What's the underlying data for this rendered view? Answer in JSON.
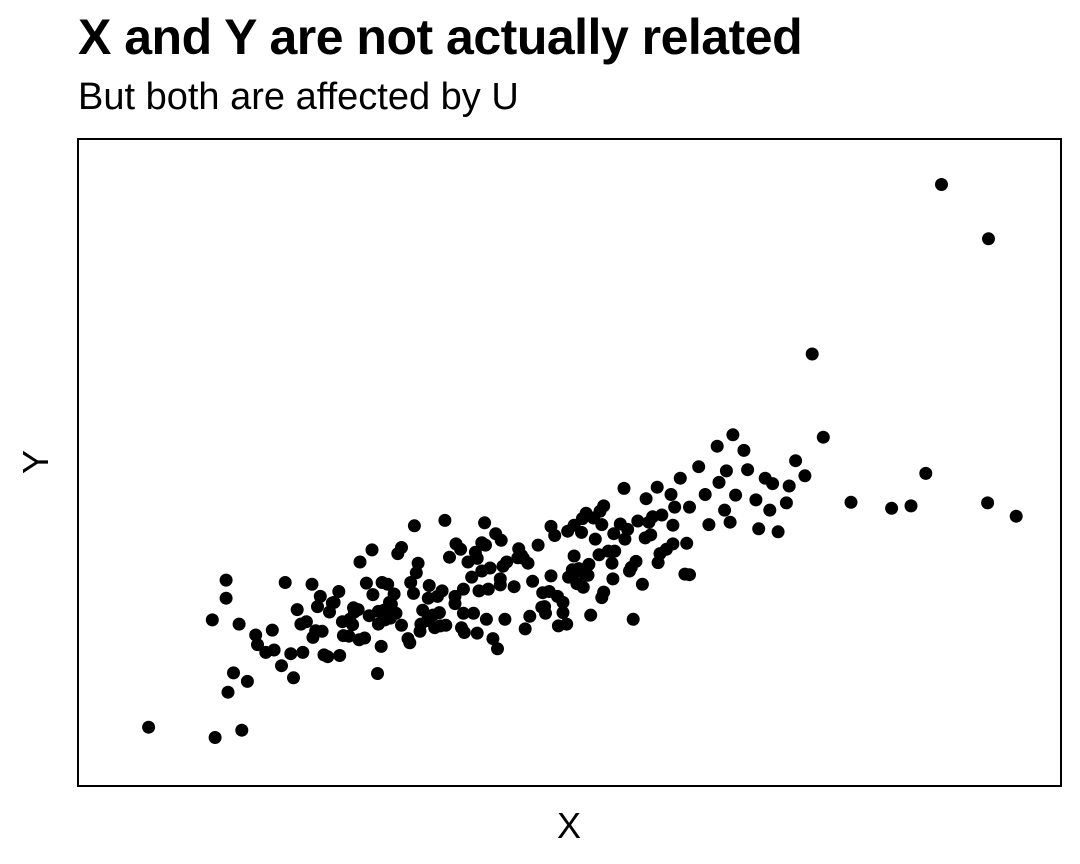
{
  "chart_data": {
    "type": "scatter",
    "title": "X and Y are not actually related",
    "subtitle": "But both are affected by U",
    "xlabel": "X",
    "ylabel": "Y",
    "xlim": [
      0,
      1000
    ],
    "ylim": [
      0,
      1000
    ],
    "grid": false,
    "axis_ticks": false,
    "point_color": "#000000",
    "points": [
      [
        44,
        61
      ],
      [
        116,
        44
      ],
      [
        145,
        56
      ],
      [
        130,
        119
      ],
      [
        128,
        305
      ],
      [
        192,
        301
      ],
      [
        201,
        143
      ],
      [
        211,
        185
      ],
      [
        222,
        210
      ],
      [
        227,
        261
      ],
      [
        230,
        278
      ],
      [
        234,
        181
      ],
      [
        238,
        178
      ],
      [
        243,
        267
      ],
      [
        251,
        180
      ],
      [
        254,
        236
      ],
      [
        255,
        213
      ],
      [
        261,
        212
      ],
      [
        265,
        231
      ],
      [
        267,
        252
      ],
      [
        271,
        256
      ],
      [
        272,
        206
      ],
      [
        278,
        209
      ],
      [
        273,
        335
      ],
      [
        280,
        300
      ],
      [
        286,
        355
      ],
      [
        292,
        150
      ],
      [
        293,
        253
      ],
      [
        296,
        195
      ],
      [
        299,
        255
      ],
      [
        306,
        242
      ],
      [
        307,
        265
      ],
      [
        314,
        349
      ],
      [
        318,
        359
      ],
      [
        303,
        298
      ],
      [
        305,
        268
      ],
      [
        325,
        208
      ],
      [
        328,
        301
      ],
      [
        332,
        395
      ],
      [
        336,
        333
      ],
      [
        331,
        283
      ],
      [
        341,
        255
      ],
      [
        338,
        220
      ],
      [
        347,
        275
      ],
      [
        354,
        226
      ],
      [
        357,
        278
      ],
      [
        360,
        229
      ],
      [
        370,
        343
      ],
      [
        376,
        266
      ],
      [
        382,
        356
      ],
      [
        385,
        250
      ],
      [
        386,
        218
      ],
      [
        394,
        310
      ],
      [
        400,
        217
      ],
      [
        400,
        341
      ],
      [
        408,
        400
      ],
      [
        409,
        363
      ],
      [
        410,
        240
      ],
      [
        414,
        325
      ],
      [
        417,
        208
      ],
      [
        422,
        191
      ],
      [
        425,
        307
      ],
      [
        426,
        371
      ],
      [
        432,
        335
      ],
      [
        444,
        342
      ],
      [
        445,
        357
      ],
      [
        452,
        224
      ],
      [
        455,
        333
      ],
      [
        466,
        363
      ],
      [
        471,
        284
      ],
      [
        473,
        261
      ],
      [
        484,
        379
      ],
      [
        487,
        278
      ],
      [
        488,
        229
      ],
      [
        493,
        251
      ],
      [
        493,
        268
      ],
      [
        498,
        386
      ],
      [
        499,
        310
      ],
      [
        503,
        322
      ],
      [
        505,
        345
      ],
      [
        506,
        318
      ],
      [
        510,
        324
      ],
      [
        514,
        407
      ],
      [
        513,
        384
      ],
      [
        517,
        314
      ],
      [
        521,
        331
      ],
      [
        523,
        247
      ],
      [
        526,
        408
      ],
      [
        533,
        419
      ],
      [
        535,
        397
      ],
      [
        537,
        285
      ],
      [
        537,
        428
      ],
      [
        542,
        353
      ],
      [
        547,
        307
      ],
      [
        555,
        398
      ],
      [
        559,
        457
      ],
      [
        567,
        326
      ],
      [
        569,
        240
      ],
      [
        582,
        375
      ],
      [
        586,
        401
      ],
      [
        590,
        410
      ],
      [
        598,
        349
      ],
      [
        612,
        396
      ],
      [
        625,
        315
      ],
      [
        627,
        366
      ],
      [
        630,
        426
      ],
      [
        651,
        397
      ],
      [
        662,
        467
      ],
      [
        668,
        421
      ],
      [
        674,
        401
      ],
      [
        680,
        446
      ],
      [
        702,
        438
      ],
      [
        712,
        474
      ],
      [
        717,
        421
      ],
      [
        735,
        433
      ],
      [
        763,
        680
      ],
      [
        849,
        424
      ],
      [
        886,
        482
      ],
      [
        953,
        433
      ],
      [
        984,
        411
      ],
      [
        390,
        335
      ],
      [
        405,
        367
      ],
      [
        365,
        404
      ],
      [
        377,
        365
      ],
      [
        398,
        351
      ],
      [
        420,
        382
      ],
      [
        440,
        294
      ],
      [
        450,
        341
      ],
      [
        470,
        260
      ],
      [
        480,
        312
      ],
      [
        505,
        396
      ],
      [
        518,
        416
      ],
      [
        532,
        347
      ],
      [
        548,
        382
      ],
      [
        560,
        373
      ],
      [
        572,
        336
      ],
      [
        583,
        440
      ],
      [
        595,
        459
      ],
      [
        605,
        356
      ],
      [
        614,
        426
      ],
      [
        300,
        239
      ],
      [
        318,
        230
      ],
      [
        339,
        232
      ],
      [
        352,
        247
      ],
      [
        359,
        251
      ],
      [
        383,
        226
      ],
      [
        402,
        287
      ],
      [
        428,
        328
      ],
      [
        460,
        303
      ],
      [
        478,
        286
      ],
      [
        508,
        299
      ],
      [
        528,
        373
      ],
      [
        549,
        353
      ],
      [
        563,
        389
      ],
      [
        574,
        403
      ],
      [
        588,
        380
      ],
      [
        600,
        413
      ],
      [
        610,
        447
      ],
      [
        620,
        474
      ],
      [
        640,
        493
      ],
      [
        660,
        527
      ],
      [
        677,
        546
      ],
      [
        693,
        488
      ],
      [
        720,
        465
      ],
      [
        745,
        503
      ],
      [
        520,
        313
      ],
      [
        480,
        394
      ],
      [
        448,
        346
      ],
      [
        430,
        240
      ],
      [
        412,
        290
      ],
      [
        396,
        250
      ],
      [
        376,
        278
      ],
      [
        362,
        287
      ],
      [
        348,
        296
      ],
      [
        334,
        317
      ],
      [
        310,
        282
      ],
      [
        297,
        301
      ],
      [
        287,
        281
      ],
      [
        266,
        259
      ],
      [
        250,
        286
      ],
      [
        240,
        252
      ],
      [
        232,
        220
      ],
      [
        221,
        298
      ],
      [
        209,
        232
      ],
      [
        198,
        183
      ],
      [
        188,
        163
      ],
      [
        180,
        189
      ],
      [
        171,
        185
      ],
      [
        162,
        198
      ],
      [
        151,
        137
      ],
      [
        136,
        151
      ],
      [
        113,
        239
      ],
      [
        128,
        275
      ],
      [
        142,
        232
      ],
      [
        160,
        214
      ],
      [
        178,
        222
      ],
      [
        205,
        256
      ],
      [
        215,
        236
      ],
      [
        225,
        221
      ],
      [
        245,
        268
      ],
      [
        262,
        240
      ],
      [
        283,
        246
      ],
      [
        293,
        232
      ],
      [
        312,
        250
      ],
      [
        327,
        201
      ],
      [
        346,
        238
      ],
      [
        366,
        230
      ],
      [
        385,
        290
      ],
      [
        405,
        320
      ],
      [
        425,
        297
      ],
      [
        457,
        245
      ],
      [
        474,
        250
      ],
      [
        497,
        232
      ],
      [
        515,
        293
      ],
      [
        535,
        276
      ],
      [
        546,
        333
      ],
      [
        565,
        320
      ],
      [
        579,
        298
      ],
      [
        596,
        334
      ],
      [
        612,
        365
      ],
      [
        630,
        314
      ],
      [
        647,
        447
      ],
      [
        670,
        486
      ],
      [
        689,
        520
      ],
      [
        705,
        390
      ],
      [
        726,
        385
      ],
      [
        738,
        461
      ],
      [
        755,
        478
      ],
      [
        775,
        542
      ],
      [
        805,
        434
      ],
      [
        870,
        428
      ],
      [
        903,
        961
      ],
      [
        954,
        871
      ]
    ]
  }
}
